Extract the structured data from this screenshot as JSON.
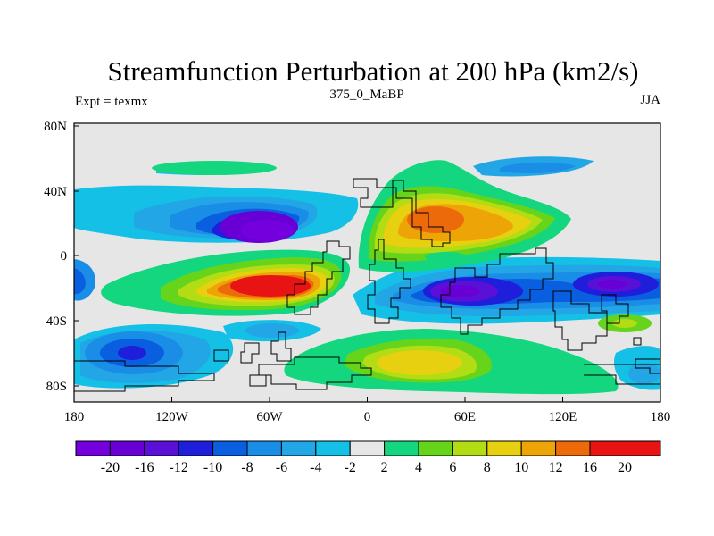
{
  "chart_data": {
    "type": "contour",
    "title": "Streamfunction Perturbation at 200 hPa (km2/s)",
    "left_string": "Expt = texmx",
    "center_string": "375_0_MaBP",
    "right_string": "JJA",
    "x_ticks": [
      "180",
      "120W",
      "60W",
      "0",
      "60E",
      "120E",
      "180"
    ],
    "y_ticks": [
      "80N",
      "40N",
      "0",
      "40S",
      "80S"
    ],
    "xlim": [
      -180,
      180
    ],
    "ylim": [
      -90,
      90
    ],
    "contour_levels": [
      "-20",
      "-16",
      "-12",
      "-10",
      "-8",
      "-6",
      "-4",
      "-2",
      "2",
      "4",
      "6",
      "8",
      "10",
      "12",
      "16",
      "20"
    ],
    "colors": [
      "#7400de",
      "#6800d6",
      "#5a10d6",
      "#1e1edb",
      "#0a5fe0",
      "#1a8ee6",
      "#23a6e6",
      "#14c0e6",
      "#e6e6e6",
      "#13d67e",
      "#66d41a",
      "#b2dc14",
      "#e6d010",
      "#eda406",
      "#ed6a0a",
      "#e81414"
    ],
    "features": [
      {
        "name": "low-north-pacific-atlantic",
        "lon": -75,
        "lat": 15,
        "value": -20
      },
      {
        "name": "high-south-atlantic",
        "lon": -50,
        "lat": -15,
        "value": 20
      },
      {
        "name": "high-north-africa-asia",
        "lon": 40,
        "lat": 20,
        "value": 12
      },
      {
        "name": "low-indian-ocean",
        "lon": 60,
        "lat": -20,
        "value": -16
      },
      {
        "name": "low-west-pacific",
        "lon": 150,
        "lat": -15,
        "value": -12
      },
      {
        "name": "low-south-pacific",
        "lon": -140,
        "lat": -60,
        "value": -12
      },
      {
        "name": "high-southern-ocean",
        "lon": 45,
        "lat": -58,
        "value": 8
      }
    ]
  }
}
